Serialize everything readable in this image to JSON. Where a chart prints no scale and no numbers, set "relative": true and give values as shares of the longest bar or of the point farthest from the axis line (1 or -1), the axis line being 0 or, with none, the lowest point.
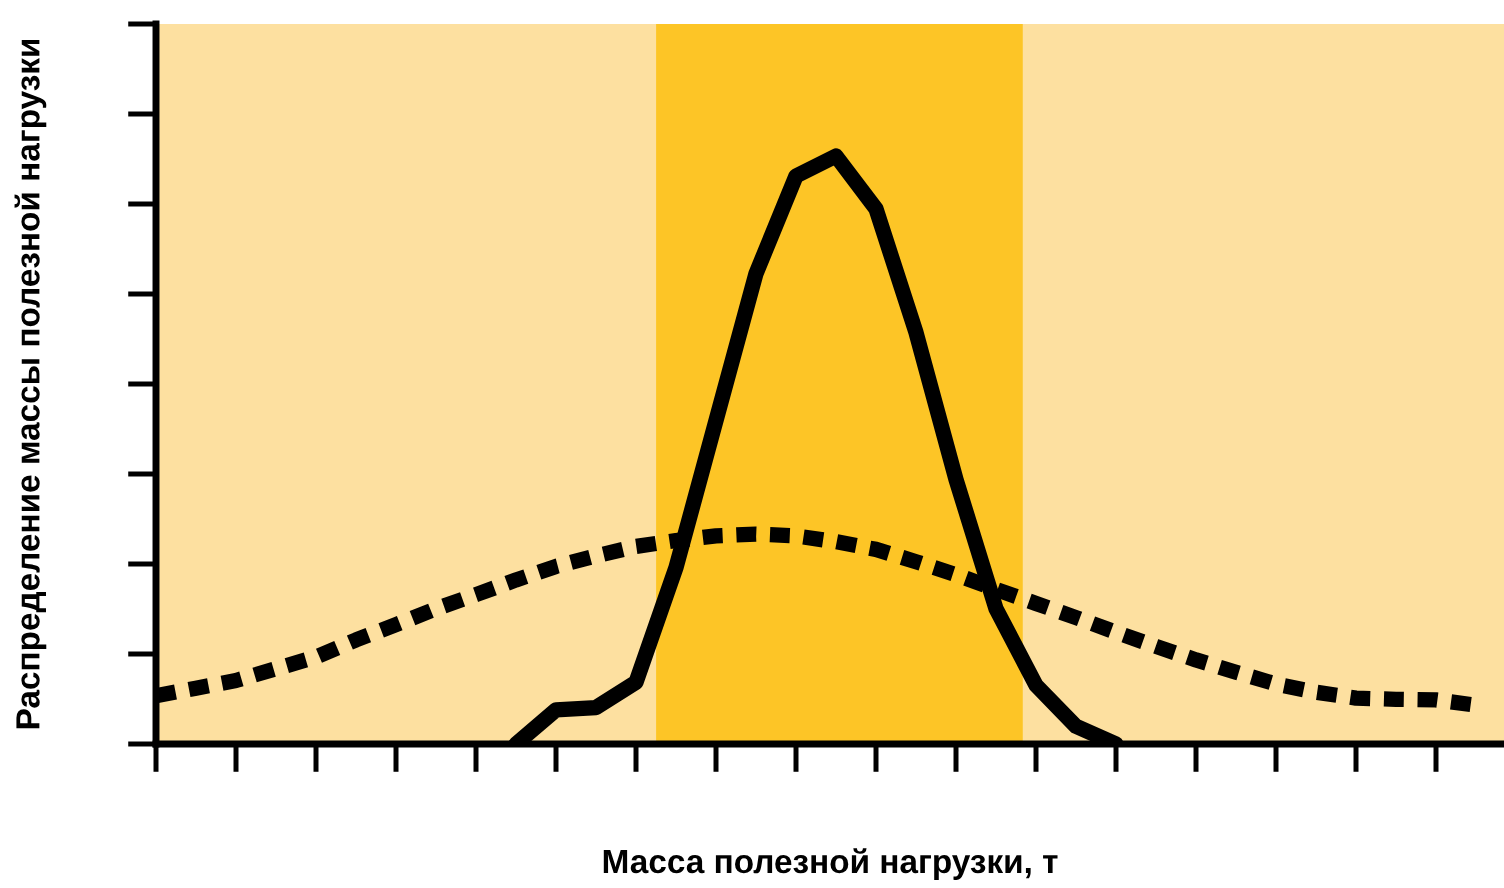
{
  "chart_data": {
    "type": "line",
    "relative": true,
    "xlabel": "Масса полезной нагрузки, т",
    "ylabel": "Распределение массы полезной нагрузки",
    "categories": [
      null,
      null,
      null,
      null,
      null,
      null,
      null,
      null,
      null,
      null,
      null,
      null,
      null,
      null,
      null,
      null,
      null,
      null,
      null,
      null,
      null,
      null,
      null,
      null,
      null,
      null,
      null,
      null,
      null,
      null,
      null,
      null,
      null,
      null
    ],
    "grid": false,
    "legend": false,
    "marker": "none",
    "series": [
      {
        "color": "#000000",
        "line_style": "solid",
        "values": [
          null,
          null,
          null,
          null,
          null,
          null,
          null,
          null,
          null,
          0,
          0.058,
          0.062,
          0.105,
          0.3,
          0.55,
          0.8,
          0.966,
          1.0,
          0.91,
          0.7,
          0.45,
          0.23,
          0.1,
          0.03,
          0,
          null,
          null,
          null,
          null,
          null,
          null,
          null,
          null,
          null
        ]
      },
      {
        "color": "#000000",
        "line_style": "dashed",
        "values": [
          0.082,
          0.095,
          0.108,
          0.128,
          0.148,
          0.177,
          0.203,
          0.23,
          0.254,
          0.279,
          0.302,
          0.32,
          0.336,
          0.346,
          0.354,
          0.357,
          0.354,
          0.344,
          0.331,
          0.31,
          0.288,
          0.263,
          0.239,
          0.215,
          0.19,
          0.166,
          0.143,
          0.122,
          0.102,
          0.088,
          0.078,
          0.076,
          0.075,
          0.066
        ]
      }
    ]
  }
}
